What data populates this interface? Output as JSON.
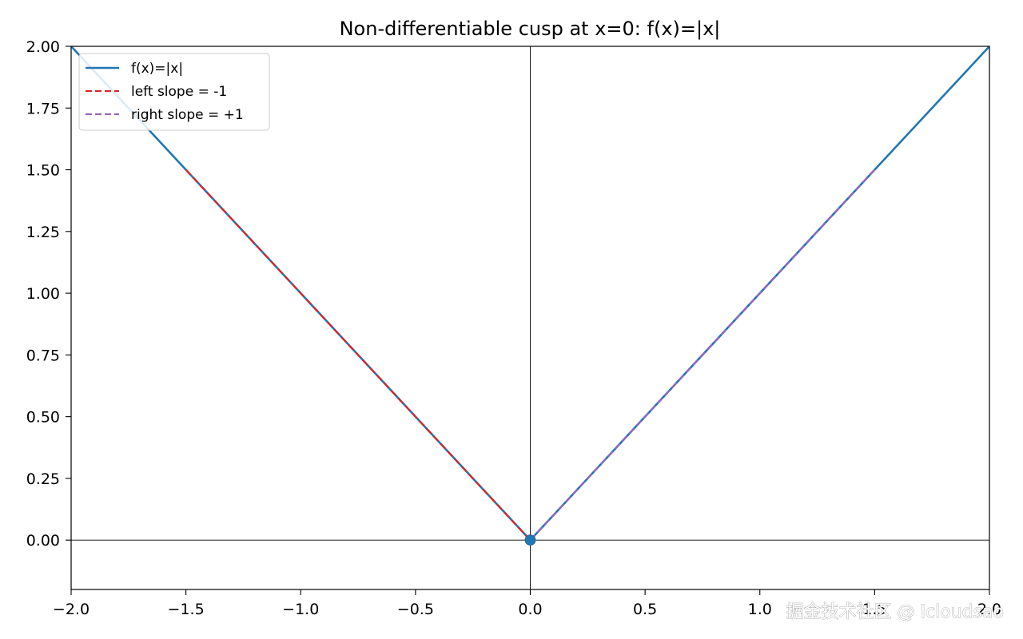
{
  "chart_data": {
    "type": "line",
    "title": "Non-differentiable cusp at x=0: f(x)=|x|",
    "xlabel": "",
    "ylabel": "",
    "xlim": [
      -2.0,
      2.0
    ],
    "ylim": [
      -0.2,
      2.0
    ],
    "x_ticks": [
      -2.0,
      -1.5,
      -1.0,
      -0.5,
      0.0,
      0.5,
      1.0,
      1.5,
      2.0
    ],
    "x_tick_labels": [
      "−2.0",
      "−1.5",
      "−1.0",
      "−0.5",
      "0.0",
      "0.5",
      "1.0",
      "1.5",
      "2.0"
    ],
    "y_ticks": [
      0.0,
      0.25,
      0.5,
      0.75,
      1.0,
      1.25,
      1.5,
      1.75,
      2.0
    ],
    "y_tick_labels": [
      "0.00",
      "0.25",
      "0.50",
      "0.75",
      "1.00",
      "1.25",
      "1.50",
      "1.75",
      "2.00"
    ],
    "grid": false,
    "reference_lines": {
      "x": 0,
      "y": 0,
      "color": "#000000"
    },
    "series": [
      {
        "name": "f(x)=|x|",
        "style": "solid",
        "color": "#1f77b4",
        "x": [
          -2.0,
          0.0,
          2.0
        ],
        "y": [
          2.0,
          0.0,
          2.0
        ]
      },
      {
        "name": "left slope = -1",
        "style": "dashed",
        "color": "#d62728",
        "x": [
          -1.5,
          0.0
        ],
        "y": [
          1.5,
          0.0
        ]
      },
      {
        "name": "right slope = +1",
        "style": "dashed",
        "color": "#9467bd",
        "x": [
          0.0,
          1.5
        ],
        "y": [
          0.0,
          1.5
        ]
      }
    ],
    "points": [
      {
        "x": 0.0,
        "y": 0.0,
        "color": "#1f77b4"
      }
    ],
    "legend": {
      "position": "top-left"
    }
  },
  "watermark": "掘金技术社区 @ Icloudsao"
}
